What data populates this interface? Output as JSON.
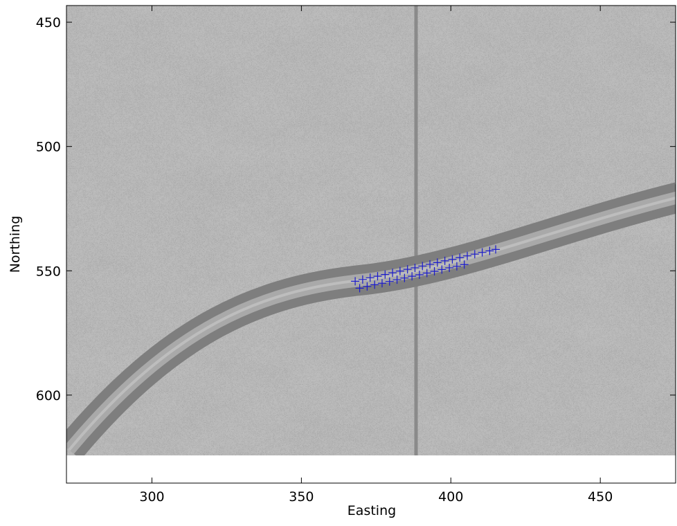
{
  "chart_data": {
    "type": "scatter",
    "x_label": "Easting",
    "y_label": "Northing",
    "xlim": [
      271.4,
      475.2
    ],
    "ylim": [
      635.4,
      443.3
    ],
    "xticks": [
      300,
      350,
      400,
      450
    ],
    "yticks": [
      450,
      500,
      550,
      600
    ],
    "series": [
      {
        "color": "#1a1acc",
        "x": [
          368,
          370.5,
          373,
          375.5,
          378,
          380.5,
          383,
          385.5,
          388,
          390.5,
          393,
          395.5,
          398,
          400.5,
          403,
          405.5,
          408,
          410.5,
          413,
          415,
          369.5,
          372,
          374.5,
          377,
          379.5,
          382,
          384.5,
          387,
          389.5,
          392,
          394.5,
          397,
          399.5,
          402,
          404.5
        ],
        "values": [
          554.2,
          553.5,
          552.8,
          552.2,
          551.5,
          550.8,
          550.1,
          549.4,
          548.8,
          548.1,
          547.4,
          546.7,
          546.0,
          545.4,
          544.7,
          544.0,
          543.3,
          542.6,
          542.0,
          541.4,
          557.0,
          556.3,
          555.6,
          555.0,
          554.3,
          553.6,
          552.9,
          552.2,
          551.6,
          550.9,
          550.2,
          549.5,
          548.8,
          548.2,
          547.5
        ]
      }
    ]
  }
}
